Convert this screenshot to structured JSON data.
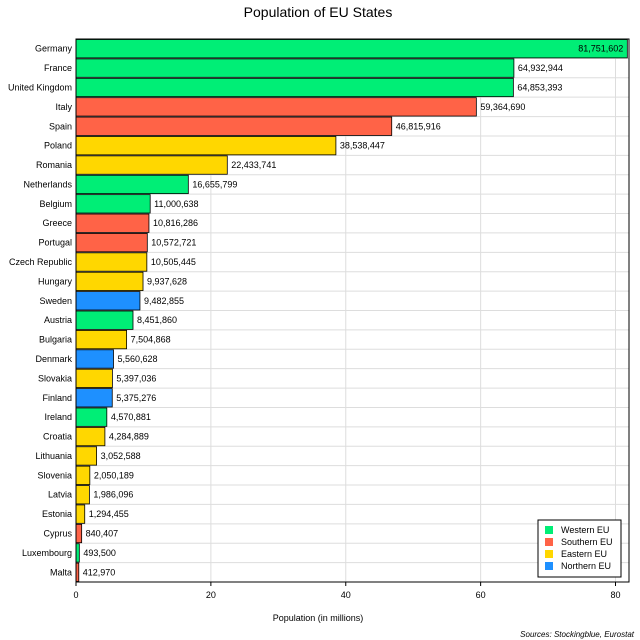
{
  "chart_data": {
    "type": "bar",
    "orientation": "horizontal",
    "title": "Population of EU States",
    "xlabel": "Population (in millions)",
    "ylabel": "",
    "xlim": [
      0,
      82
    ],
    "xticks": [
      0,
      20,
      40,
      60,
      80
    ],
    "grid": true,
    "legend_position": "bottom-right",
    "source": "Sources: Stockingblue, Eurostat",
    "legend": [
      {
        "name": "Western EU",
        "color": "#00ee76"
      },
      {
        "name": "Southern EU",
        "color": "#ff6347"
      },
      {
        "name": "Eastern EU",
        "color": "#ffd700"
      },
      {
        "name": "Northern EU",
        "color": "#1e90ff"
      }
    ],
    "bars": [
      {
        "category": "Germany",
        "value": 81751602,
        "label": "81,751,602",
        "region": "Western EU"
      },
      {
        "category": "France",
        "value": 64932944,
        "label": "64,932,944",
        "region": "Western EU"
      },
      {
        "category": "United Kingdom",
        "value": 64853393,
        "label": "64,853,393",
        "region": "Western EU"
      },
      {
        "category": "Italy",
        "value": 59364690,
        "label": "59,364,690",
        "region": "Southern EU"
      },
      {
        "category": "Spain",
        "value": 46815916,
        "label": "46,815,916",
        "region": "Southern EU"
      },
      {
        "category": "Poland",
        "value": 38538447,
        "label": "38,538,447",
        "region": "Eastern EU"
      },
      {
        "category": "Romania",
        "value": 22433741,
        "label": "22,433,741",
        "region": "Eastern EU"
      },
      {
        "category": "Netherlands",
        "value": 16655799,
        "label": "16,655,799",
        "region": "Western EU"
      },
      {
        "category": "Belgium",
        "value": 11000638,
        "label": "11,000,638",
        "region": "Western EU"
      },
      {
        "category": "Greece",
        "value": 10816286,
        "label": "10,816,286",
        "region": "Southern EU"
      },
      {
        "category": "Portugal",
        "value": 10572721,
        "label": "10,572,721",
        "region": "Southern EU"
      },
      {
        "category": "Czech Republic",
        "value": 10505445,
        "label": "10,505,445",
        "region": "Eastern EU"
      },
      {
        "category": "Hungary",
        "value": 9937628,
        "label": "9,937,628",
        "region": "Eastern EU"
      },
      {
        "category": "Sweden",
        "value": 9482855,
        "label": "9,482,855",
        "region": "Northern EU"
      },
      {
        "category": "Austria",
        "value": 8451860,
        "label": "8,451,860",
        "region": "Western EU"
      },
      {
        "category": "Bulgaria",
        "value": 7504868,
        "label": "7,504,868",
        "region": "Eastern EU"
      },
      {
        "category": "Denmark",
        "value": 5560628,
        "label": "5,560,628",
        "region": "Northern EU"
      },
      {
        "category": "Slovakia",
        "value": 5397036,
        "label": "5,397,036",
        "region": "Eastern EU"
      },
      {
        "category": "Finland",
        "value": 5375276,
        "label": "5,375,276",
        "region": "Northern EU"
      },
      {
        "category": "Ireland",
        "value": 4570881,
        "label": "4,570,881",
        "region": "Western EU"
      },
      {
        "category": "Croatia",
        "value": 4284889,
        "label": "4,284,889",
        "region": "Eastern EU"
      },
      {
        "category": "Lithuania",
        "value": 3052588,
        "label": "3,052,588",
        "region": "Eastern EU"
      },
      {
        "category": "Slovenia",
        "value": 2050189,
        "label": "2,050,189",
        "region": "Eastern EU"
      },
      {
        "category": "Latvia",
        "value": 1986096,
        "label": "1,986,096",
        "region": "Eastern EU"
      },
      {
        "category": "Estonia",
        "value": 1294455,
        "label": "1,294,455",
        "region": "Eastern EU"
      },
      {
        "category": "Cyprus",
        "value": 840407,
        "label": "840,407",
        "region": "Southern EU"
      },
      {
        "category": "Luxembourg",
        "value": 493500,
        "label": "493,500",
        "region": "Western EU"
      },
      {
        "category": "Malta",
        "value": 412970,
        "label": "412,970",
        "region": "Southern EU"
      }
    ]
  }
}
